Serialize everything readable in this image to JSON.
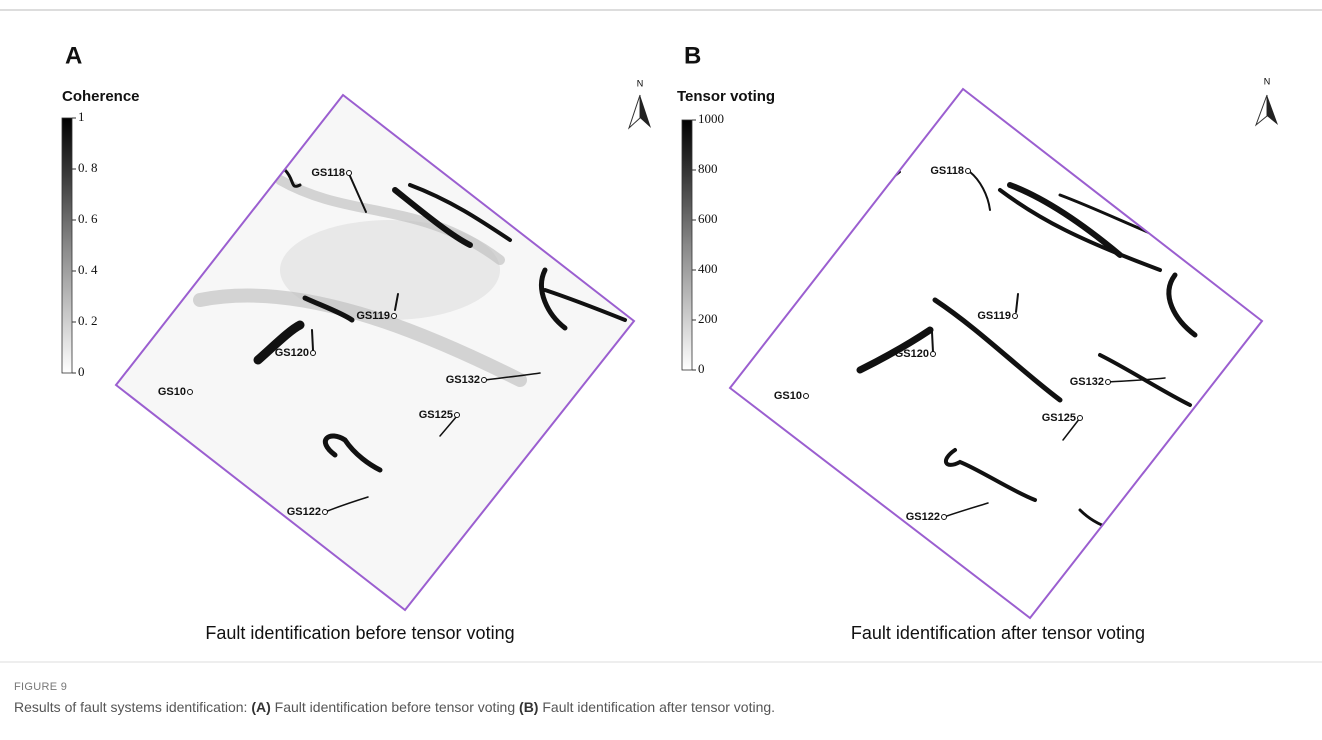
{
  "figure": {
    "label": "FIGURE 9",
    "caption": [
      "Results of fault systems identification: ",
      "(A)",
      " Fault identification before tensor voting ",
      "(B)",
      " Fault identification after tensor voting."
    ]
  },
  "panels": [
    {
      "letter": "A",
      "colorbar_title": "Coherence",
      "colorbar_ticks": [
        "1",
        "0. 8",
        "0. 6",
        "0. 4",
        "0. 2",
        "0"
      ],
      "north": "N",
      "wells": [
        "GS118",
        "GS119",
        "GS120",
        "GS10",
        "GS132",
        "GS125",
        "GS122"
      ],
      "caption": "Fault identification before tensor voting"
    },
    {
      "letter": "B",
      "colorbar_title": "Tensor voting",
      "colorbar_ticks": [
        "1000",
        "800",
        "600",
        "400",
        "200",
        "0"
      ],
      "north": "N",
      "wells": [
        "GS118",
        "GS119",
        "GS120",
        "GS10",
        "GS132",
        "GS125",
        "GS122"
      ],
      "caption": "Fault identification after tensor voting"
    }
  ]
}
